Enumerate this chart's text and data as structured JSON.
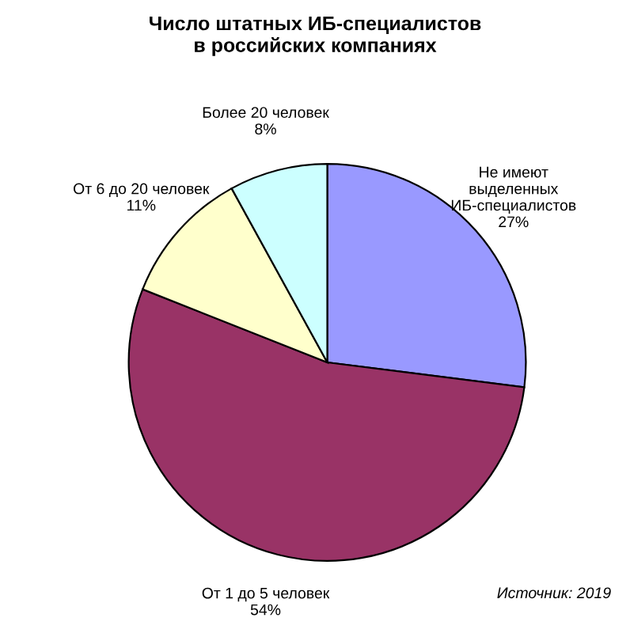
{
  "chart_data": {
    "type": "pie",
    "title": "Число штатных ИБ-специалистов\nв российских компаниях",
    "categories": [
      "Не имеют\nвыделенных\nИБ-специалистов",
      "От 1 до 5 человек",
      "От 6 до 20 человек",
      "Более 20 человек"
    ],
    "values": [
      27,
      54,
      11,
      8
    ],
    "value_labels": [
      "27%",
      "54%",
      "11%",
      "8%"
    ],
    "colors": [
      "#9999ff",
      "#993366",
      "#ffffcc",
      "#ccffff"
    ],
    "annotations": [
      "Источник: 2019"
    ]
  }
}
